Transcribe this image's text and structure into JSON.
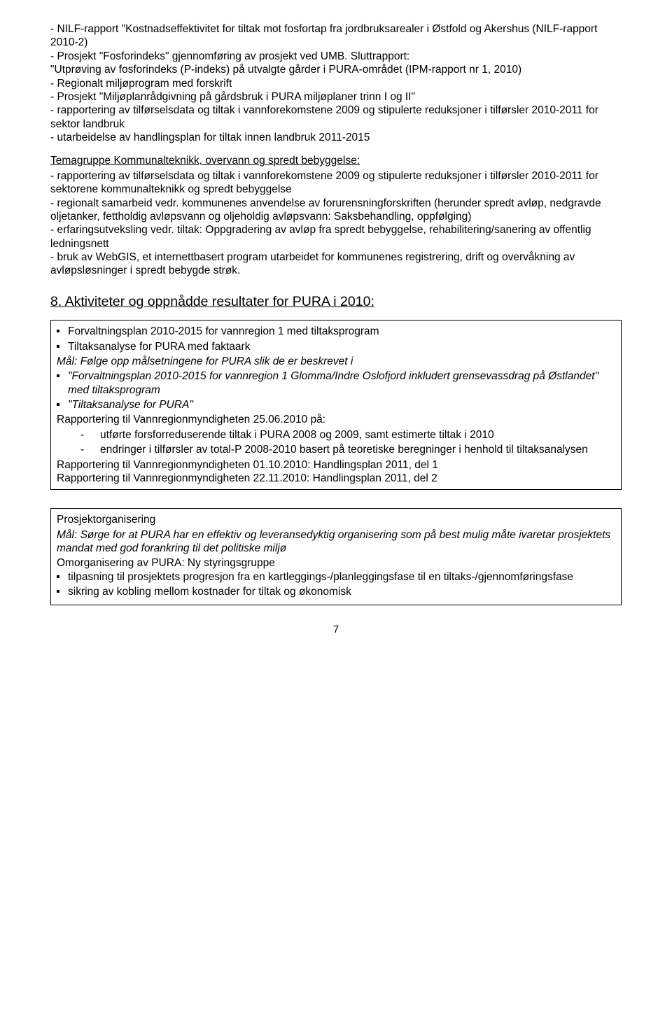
{
  "topBlock": {
    "line1": "- NILF-rapport \"Kostnadseffektivitet for tiltak mot fosfortap fra jordbruksarealer i Østfold og Akershus (NILF-rapport 2010-2)",
    "line2": "- Prosjekt \"Fosforindeks\" gjennomføring av prosjekt ved UMB. Sluttrapport:",
    "line3": "\"Utprøving av fosforindeks (P-indeks) på utvalgte gårder i PURA-området (IPM-rapport nr 1, 2010)",
    "line4": "- Regionalt miljøprogram med forskrift",
    "line5": "- Prosjekt \"Miljøplanrådgivning på gårdsbruk i PURA miljøplaner trinn I og II\"",
    "line6": "- rapportering av tilførselsdata og tiltak i vannforekomstene 2009 og stipulerte reduksjoner i tilførsler 2010-2011 for sektor landbruk",
    "line7": "- utarbeidelse av handlingsplan for tiltak innen landbruk 2011-2015"
  },
  "temaTitle": "Temagruppe Kommunalteknikk, overvann og spredt bebyggelse:",
  "temaBlock": {
    "l1": "- rapportering av tilførselsdata og tiltak i vannforekomstene 2009 og stipulerte reduksjoner i tilførsler 2010-2011 for sektorene kommunalteknikk og spredt bebyggelse",
    "l2": "- regionalt samarbeid vedr. kommunenes anvendelse av forurensningforskriften (herunder spredt avløp, nedgravde oljetanker, fettholdig avløpsvann og oljeholdig avløpsvann: Saksbehandling, oppfølging)",
    "l3": "- erfaringsutveksling vedr. tiltak: Oppgradering av avløp fra spredt bebyggelse, rehabilitering/sanering av offentlig ledningsnett",
    "l4": "- bruk av WebGIS, et internettbasert program utarbeidet for kommunenes registrering, drift og overvåkning av avløpsløsninger i spredt bebygde strøk."
  },
  "sectionHeading": "8. Aktiviteter og oppnådde resultater for PURA i 2010:",
  "box1": {
    "bullet1": "Forvaltningsplan 2010-2015 for vannregion 1 med tiltaksprogram",
    "bullet2": "Tiltaksanalyse for PURA med faktaark",
    "goalLine": "Mål: Følge opp målsetningene for PURA slik de er beskrevet i",
    "goalBullet1": "\"Forvaltningsplan 2010-2015 for vannregion 1 Glomma/Indre Oslofjord inkludert grensevassdrag på Østlandet\" med tiltaksprogram",
    "goalBullet2": "\"Tiltaksanalyse for PURA\"",
    "reportLine": "Rapportering til Vannregionmyndigheten 25.06.2010 på:",
    "dash1": "utførte forsforreduserende tiltak i PURA 2008 og 2009, samt estimerte tiltak i 2010",
    "dash2": "endringer i tilførsler av total-P 2008-2010 basert på teoretiske beregninger i henhold til tiltaksanalysen",
    "r1": "Rapportering til Vannregionmyndigheten 01.10.2010: Handlingsplan 2011, del 1",
    "r2": "Rapportering til Vannregionmyndigheten 22.11.2010: Handlingsplan 2011, del 2"
  },
  "box2": {
    "title": "Prosjektorganisering",
    "goal": "Mål: Sørge for at PURA har en effektiv og leveransedyktig organisering som på best mulig måte ivaretar prosjektets mandat med god forankring til det politiske miljø",
    "line": "Omorganisering av PURA: Ny styringsgruppe",
    "b1": "tilpasning til prosjektets progresjon fra en kartleggings-/planleggingsfase til en tiltaks-/gjennomføringsfase",
    "b2": "sikring av kobling mellom kostnader for tiltak og økonomisk"
  },
  "pageNumber": "7"
}
